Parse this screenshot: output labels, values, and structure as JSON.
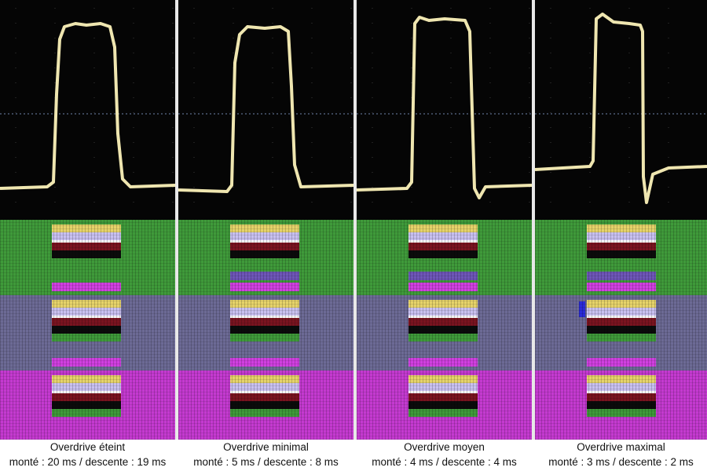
{
  "colors": {
    "trace": "#efe6b0",
    "scope_bg": "#050505",
    "green": "#3f9a3a",
    "slate": "#6c6a95",
    "magenta": "#c43ad0"
  },
  "panels": [
    {
      "title": "Overdrive éteint",
      "subtitle": "monté : 20 ms / descente : 19 ms"
    },
    {
      "title": "Overdrive minimal",
      "subtitle": "monté : 5 ms / descente : 8 ms"
    },
    {
      "title": "Overdrive moyen",
      "subtitle": "monté : 4 ms / descente : 4 ms"
    },
    {
      "title": "Overdrive maximal",
      "subtitle": "monté : 3 ms / descente : 2 ms"
    }
  ]
}
